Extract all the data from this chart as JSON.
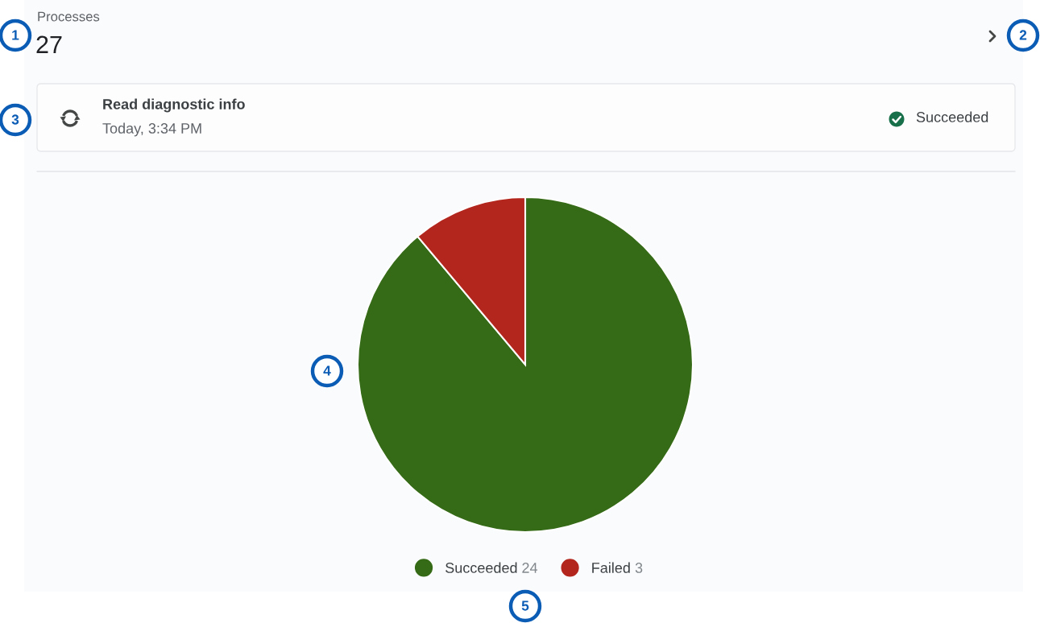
{
  "chart_data": {
    "type": "pie",
    "title": "Processes",
    "subtitle": "27",
    "categories": [
      "Succeeded",
      "Failed"
    ],
    "values": [
      24,
      3
    ],
    "colors": [
      "#356a16",
      "#b3261e"
    ],
    "legend": "bottom",
    "data_labels": true,
    "annotations": [
      "Read diagnostic info",
      "Today, 3:34 PM",
      "Succeeded",
      "1",
      "2",
      "3",
      "4",
      "5"
    ]
  }
}
